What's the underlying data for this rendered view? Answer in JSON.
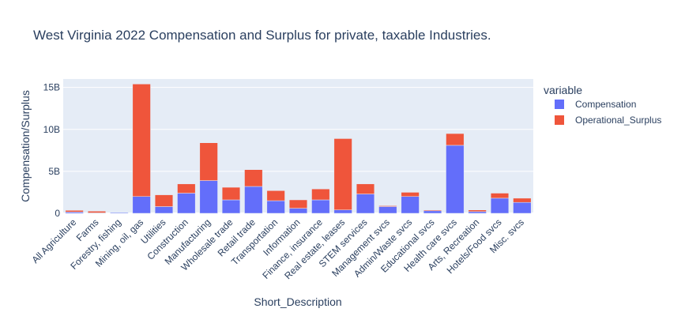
{
  "chart_data": {
    "type": "bar",
    "stacked": true,
    "title": "West Virginia 2022 Compensation and Surplus for private, taxable Industries.",
    "xlabel": "Short_Description",
    "ylabel": "Compensation/Surplus",
    "ylim": [
      0,
      16000000000
    ],
    "yticks": [
      0,
      5000000000,
      10000000000,
      15000000000
    ],
    "ytick_labels": [
      "0",
      "5B",
      "10B",
      "15B"
    ],
    "grid": true,
    "legend": {
      "title": "variable",
      "placement": "top-right"
    },
    "categories": [
      "All Agriculture",
      "Farms",
      "Forestry, fishing",
      "Mining, oil, gas",
      "Utilities",
      "Construction",
      "Manufacturing",
      "Wholesale trade",
      "Retail trade",
      "Transportation",
      "Information",
      "Finance, insurance",
      "Real estate, leases",
      "STEM services",
      "Management svcs",
      "Admin/Waste svcs",
      "Educational svcs",
      "Health care svcs",
      "Arts, Recreation",
      "Hotels/Food svcs",
      "Misc. svcs"
    ],
    "series": [
      {
        "name": "Compensation",
        "color": "#636efa",
        "values": [
          150000000,
          50000000,
          90000000,
          2000000000,
          800000000,
          2400000000,
          3900000000,
          1600000000,
          3200000000,
          1500000000,
          600000000,
          1600000000,
          400000000,
          2300000000,
          800000000,
          2000000000,
          300000000,
          8100000000,
          200000000,
          1800000000,
          1300000000
        ]
      },
      {
        "name": "Operational_Surplus",
        "color": "#ef553b",
        "values": [
          200000000,
          200000000,
          0,
          13400000000,
          1400000000,
          1100000000,
          4500000000,
          1500000000,
          2000000000,
          1200000000,
          1000000000,
          1300000000,
          8500000000,
          1200000000,
          100000000,
          500000000,
          100000000,
          1400000000,
          200000000,
          600000000,
          500000000
        ]
      }
    ]
  }
}
